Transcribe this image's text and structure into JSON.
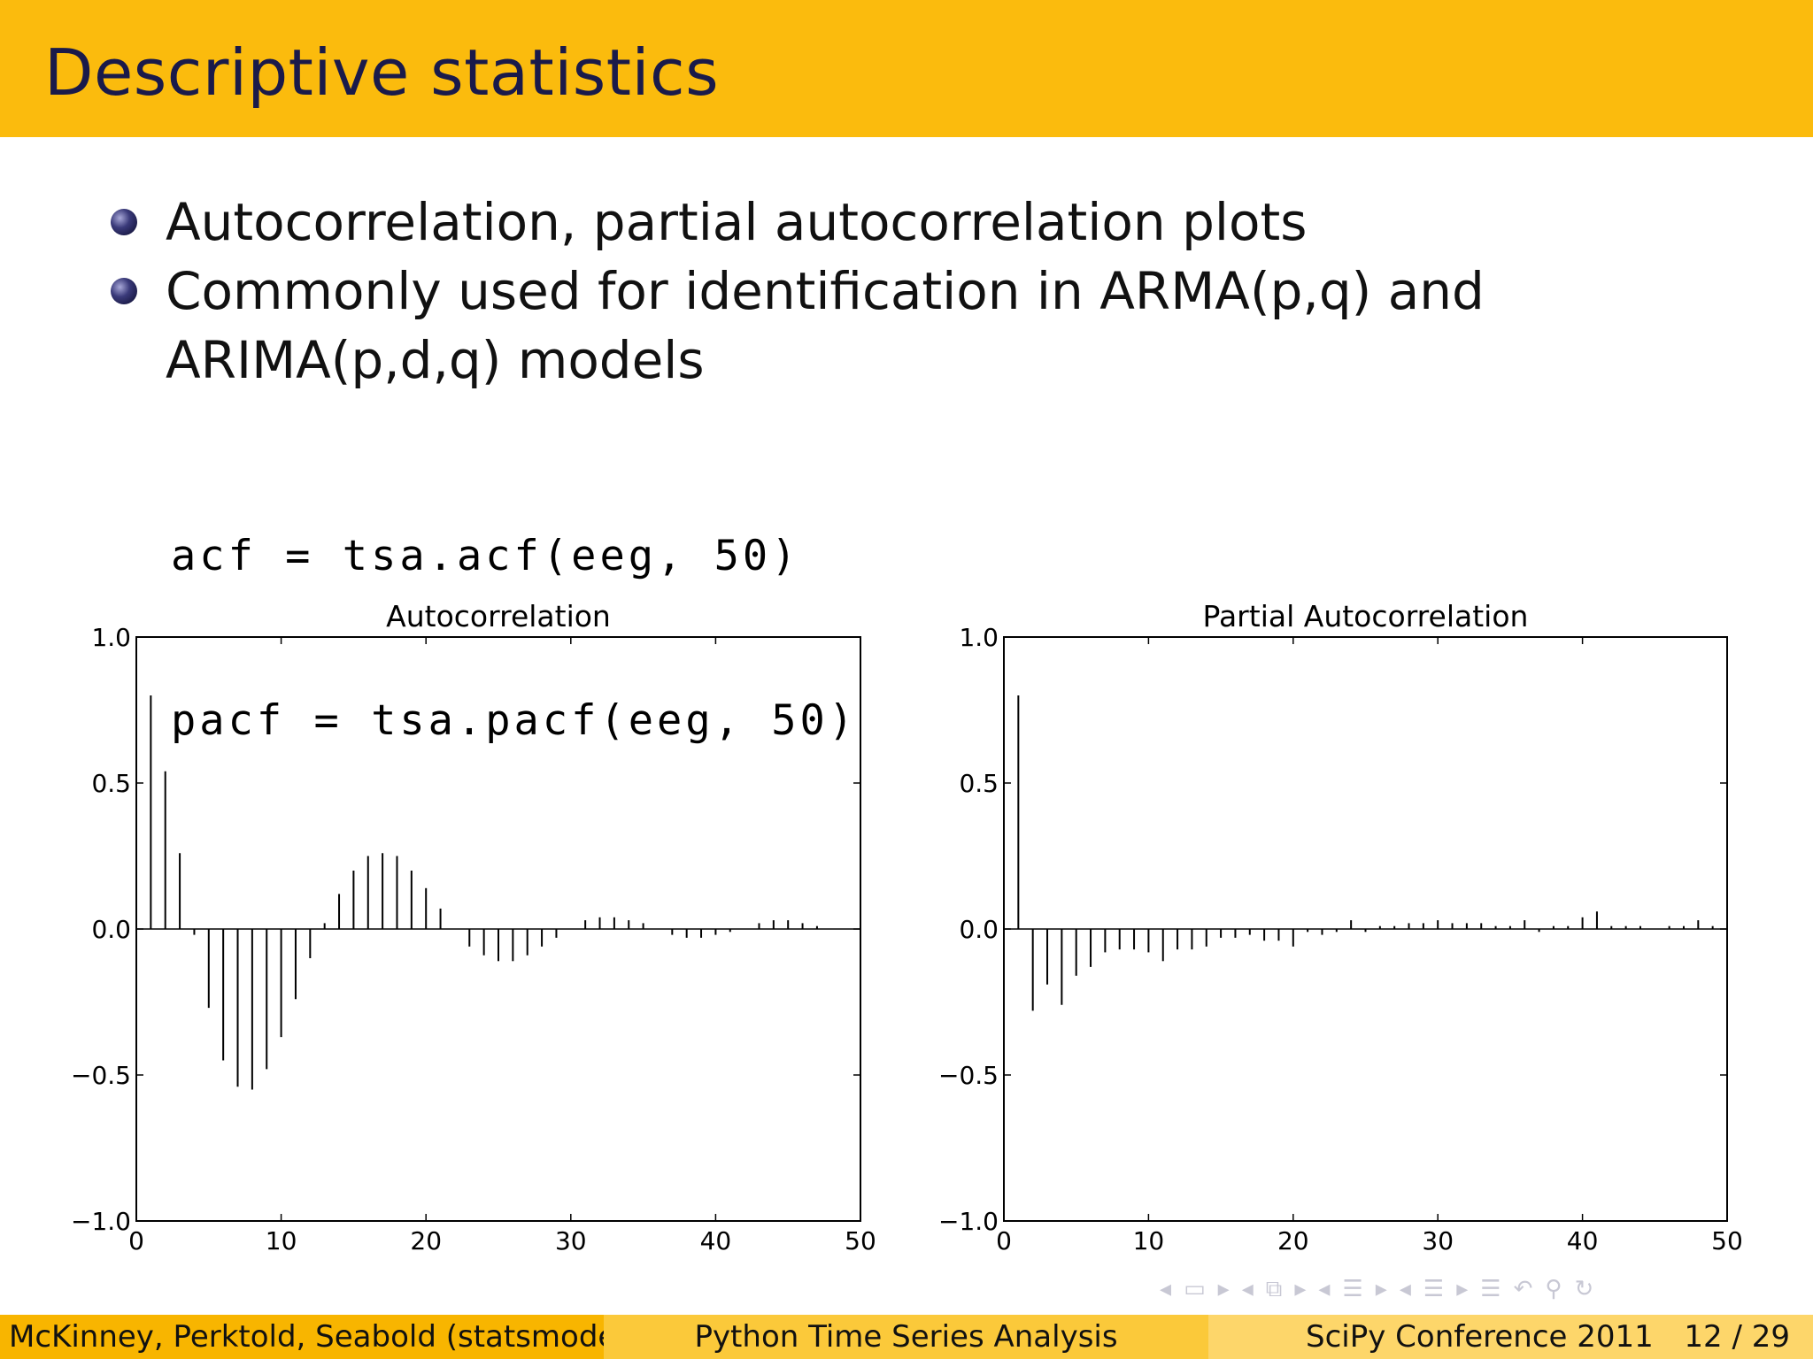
{
  "slide": {
    "title": "Descriptive statistics",
    "bullets": [
      "Autocorrelation, partial autocorrelation plots",
      "Commonly used for identification in ARMA(p,q) and ARIMA(p,d,q) models"
    ],
    "code": [
      "acf = tsa.acf(eeg, 50)",
      "pacf = tsa.pacf(eeg, 50)"
    ]
  },
  "footer": {
    "authors": "McKinney, Perktold, Seabold  (statsmodels)",
    "talk_title": "Python Time Series Analysis",
    "conference": "SciPy Conference 2011",
    "page": "12 / 29"
  },
  "nav": {
    "icons": [
      "nav-left-arrow",
      "frame-icon",
      "nav-right-arrow",
      "nav-left-arrow",
      "subsection-icon",
      "nav-right-arrow",
      "nav-left-arrow",
      "section-icon",
      "nav-right-arrow",
      "nav-left-arrow",
      "section-icon",
      "nav-right-arrow",
      "align-icon",
      "back-icon",
      "search-icon",
      "refresh-icon"
    ]
  },
  "chart_data": [
    {
      "type": "bar",
      "title": "Autocorrelation",
      "xlabel": "",
      "ylabel": "",
      "xlim": [
        0,
        50
      ],
      "ylim": [
        -1.0,
        1.0
      ],
      "xticks": [
        "0",
        "10",
        "20",
        "30",
        "40",
        "50"
      ],
      "yticks": [
        "−1.0",
        "−0.5",
        "0.0",
        "0.5",
        "1.0"
      ],
      "grid": false,
      "x": [
        1,
        2,
        3,
        4,
        5,
        6,
        7,
        8,
        9,
        10,
        11,
        12,
        13,
        14,
        15,
        16,
        17,
        18,
        19,
        20,
        21,
        22,
        23,
        24,
        25,
        26,
        27,
        28,
        29,
        30,
        31,
        32,
        33,
        34,
        35,
        36,
        37,
        38,
        39,
        40,
        41,
        42,
        43,
        44,
        45,
        46,
        47,
        48,
        49,
        50
      ],
      "values": [
        0.8,
        0.54,
        0.26,
        -0.02,
        -0.27,
        -0.45,
        -0.54,
        -0.55,
        -0.48,
        -0.37,
        -0.24,
        -0.1,
        0.02,
        0.12,
        0.2,
        0.25,
        0.26,
        0.25,
        0.2,
        0.14,
        0.07,
        0.0,
        -0.06,
        -0.09,
        -0.11,
        -0.11,
        -0.09,
        -0.06,
        -0.03,
        0.0,
        0.03,
        0.04,
        0.04,
        0.03,
        0.02,
        0.0,
        -0.02,
        -0.03,
        -0.03,
        -0.02,
        -0.01,
        0.0,
        0.02,
        0.03,
        0.03,
        0.02,
        0.01,
        0.0,
        0.0,
        0.0
      ]
    },
    {
      "type": "bar",
      "title": "Partial Autocorrelation",
      "xlabel": "",
      "ylabel": "",
      "xlim": [
        0,
        50
      ],
      "ylim": [
        -1.0,
        1.0
      ],
      "xticks": [
        "0",
        "10",
        "20",
        "30",
        "40",
        "50"
      ],
      "yticks": [
        "−1.0",
        "−0.5",
        "0.0",
        "0.5",
        "1.0"
      ],
      "grid": false,
      "x": [
        1,
        2,
        3,
        4,
        5,
        6,
        7,
        8,
        9,
        10,
        11,
        12,
        13,
        14,
        15,
        16,
        17,
        18,
        19,
        20,
        21,
        22,
        23,
        24,
        25,
        26,
        27,
        28,
        29,
        30,
        31,
        32,
        33,
        34,
        35,
        36,
        37,
        38,
        39,
        40,
        41,
        42,
        43,
        44,
        45,
        46,
        47,
        48,
        49,
        50
      ],
      "values": [
        0.8,
        -0.28,
        -0.19,
        -0.26,
        -0.16,
        -0.13,
        -0.08,
        -0.07,
        -0.07,
        -0.08,
        -0.11,
        -0.07,
        -0.07,
        -0.06,
        -0.03,
        -0.03,
        -0.02,
        -0.04,
        -0.04,
        -0.06,
        -0.01,
        -0.02,
        -0.01,
        0.03,
        -0.01,
        0.01,
        0.01,
        0.02,
        0.02,
        0.03,
        0.02,
        0.02,
        0.02,
        0.01,
        0.01,
        0.03,
        -0.01,
        0.01,
        0.01,
        0.04,
        0.06,
        0.01,
        0.01,
        0.01,
        0.0,
        0.01,
        0.01,
        0.03,
        0.01,
        0.0
      ]
    }
  ]
}
